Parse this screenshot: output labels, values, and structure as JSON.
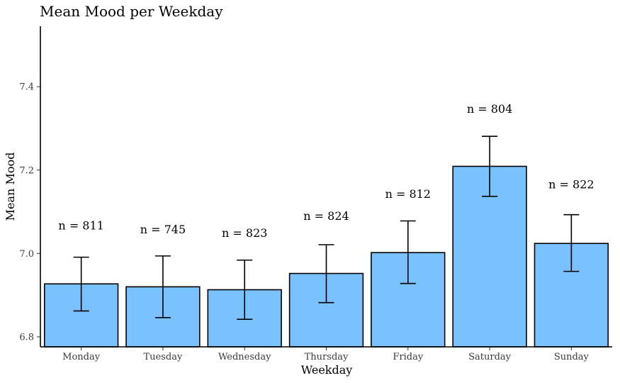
{
  "chart_data": {
    "type": "bar",
    "title": "Mean Mood per Weekday",
    "xlabel": "Weekday",
    "ylabel": "Mean Mood",
    "categories": [
      "Monday",
      "Tuesday",
      "Wednesday",
      "Thursday",
      "Friday",
      "Saturday",
      "Sunday"
    ],
    "values": [
      6.927,
      6.92,
      6.913,
      6.952,
      7.002,
      7.209,
      7.024
    ],
    "error_low": [
      6.862,
      6.846,
      6.842,
      6.882,
      6.928,
      7.137,
      6.957
    ],
    "error_high": [
      6.991,
      6.994,
      6.984,
      7.021,
      7.078,
      7.281,
      7.093
    ],
    "annotations": [
      "n = 811",
      "n = 745",
      "n = 823",
      "n = 824",
      "n = 812",
      "n = 804",
      "n = 822"
    ],
    "annotation_y": [
      7.066,
      7.057,
      7.048,
      7.089,
      7.142,
      7.346,
      7.165
    ],
    "yticks": [
      "6.8",
      "7.0",
      "7.2",
      "7.4"
    ],
    "ylim": [
      6.776,
      7.545
    ],
    "grid": false,
    "bar_color": "#79c1ff",
    "bar_outline": "#000000"
  }
}
